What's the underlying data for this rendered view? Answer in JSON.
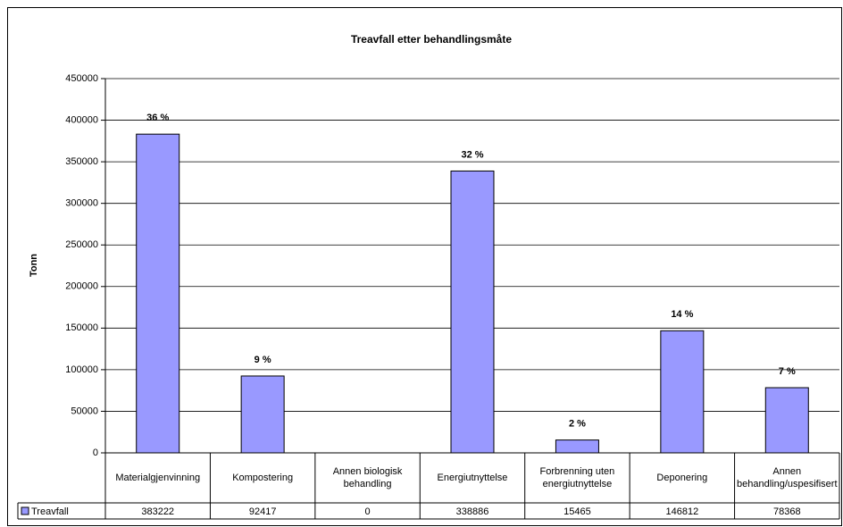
{
  "chart_data": {
    "type": "bar",
    "title": "Treavfall etter behandlingsmåte",
    "y_label": "Tonn",
    "categories": [
      "Materialgjenvinning",
      "Kompostering",
      "Annen biologisk behandling",
      "Energiutnyttelse",
      "Forbrenning uten energiutnyttelse",
      "Deponering",
      "Annen behandling/uspesifisert"
    ],
    "series": [
      {
        "name": "Treavfall",
        "color": "#9999ff",
        "values": [
          383222,
          92417,
          0,
          338886,
          15465,
          146812,
          78368
        ]
      }
    ],
    "share_labels": [
      "36 %",
      "9 %",
      null,
      "32 %",
      "2 %",
      "14 %",
      "7 %"
    ],
    "ylim": [
      0,
      450000
    ],
    "yticks": [
      0,
      50000,
      100000,
      150000,
      200000,
      250000,
      300000,
      350000,
      400000,
      450000
    ],
    "grid": true,
    "data_table": true
  }
}
